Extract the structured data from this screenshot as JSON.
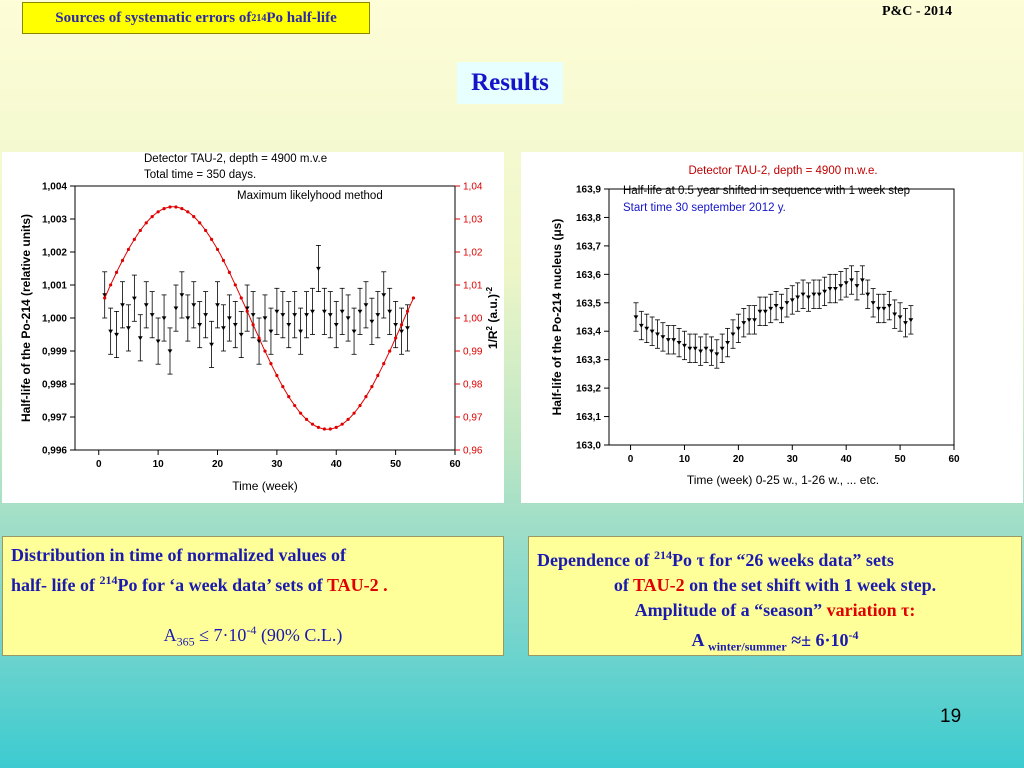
{
  "header": {
    "label_prefix": "Sources of systematic errors of ",
    "label_sup": "214",
    "label_suffix": "Po half-life",
    "conference": "P&C - 2014",
    "results_title": "Results"
  },
  "left_box": {
    "line1": "Distribution in time of normalized values of",
    "line2_prefix": "half- life of ",
    "line2_sup": "214",
    "line2_mid": "Po for ‘a week data’ sets of ",
    "line2_red": "TAU-2 .",
    "amp_A": "A",
    "amp_sub": "365",
    "amp_mid": " ≤ 7·10",
    "amp_sup": "-4",
    "amp_tail": " (90% C.L.)"
  },
  "right_box": {
    "line1_prefix": "Dependence of  ",
    "line1_sup": "214",
    "line1_mid": "Po τ for “26 weeks data” sets",
    "line2_prefix": "of ",
    "line2_red": "TAU-2",
    "line2_suffix": " on the set shift with 1 week step.",
    "line3_prefix": "Amplitude of a “season” ",
    "line3_red": "variation τ:",
    "line4_A": "A ",
    "line4_sub": "winter/summer",
    "line4_mid": " ≈± 6·10",
    "line4_sup": "-4"
  },
  "page_number": "19",
  "colors": {
    "blue": "#1515c8",
    "red": "#e00000",
    "highlight": "#ffff00"
  },
  "chart_data": [
    {
      "type": "scatter",
      "title_lines": [
        "Detector TAU-2, depth = 4900 m.v.e",
        "Total time = 350 days."
      ],
      "annotation": "Maximum likelyhood method",
      "xlabel": "Time (week)",
      "ylabel": "Half-life of the Po-214 (relative units)",
      "y2label": "1/R",
      "y2label_sup": "2",
      "y2label_tail": " (a.u.)",
      "y2label_sup2": "-2",
      "xlim": [
        -4,
        60
      ],
      "ylim": [
        0.996,
        1.004
      ],
      "y2lim": [
        0.96,
        1.04
      ],
      "xticks": [
        0,
        10,
        20,
        30,
        40,
        50,
        60
      ],
      "xtick_labels": [
        "0",
        "10",
        "20",
        "30",
        "40",
        "50",
        "60"
      ],
      "yticks": [
        0.996,
        0.997,
        0.998,
        0.999,
        1.0,
        1.001,
        1.002,
        1.003,
        1.004
      ],
      "ytick_labels": [
        "0,996",
        "0,997",
        "0,998",
        "0,999",
        "1,000",
        "1,001",
        "1,002",
        "1,003",
        "1,004"
      ],
      "y2ticks": [
        0.96,
        0.97,
        0.98,
        0.99,
        1.0,
        1.01,
        1.02,
        1.03,
        1.04
      ],
      "y2tick_labels": [
        "0,96",
        "0,97",
        "0,98",
        "0,99",
        "1,00",
        "1,01",
        "1,02",
        "1,03",
        "1,04"
      ],
      "grid": false,
      "series": [
        {
          "kind": "errorbar",
          "x": [
            1,
            2,
            3,
            4,
            5,
            6,
            7,
            8,
            9,
            10,
            11,
            12,
            13,
            14,
            15,
            16,
            17,
            18,
            19,
            20,
            21,
            22,
            23,
            24,
            25,
            26,
            27,
            28,
            29,
            30,
            31,
            32,
            33,
            34,
            35,
            36,
            37,
            38,
            39,
            40,
            41,
            42,
            43,
            44,
            45,
            46,
            47,
            48,
            49,
            50,
            51,
            52
          ],
          "y": [
            1.0007,
            0.9996,
            0.9995,
            1.0004,
            0.9997,
            1.0006,
            0.9994,
            1.0004,
            1.0001,
            0.9993,
            1.0,
            0.999,
            1.0003,
            1.0007,
            1.0,
            1.0004,
            0.9998,
            1.0001,
            0.9992,
            1.0004,
            0.9997,
            1.0,
            0.9998,
            0.9995,
            1.0003,
            1.0001,
            0.9993,
            1.0,
            0.9996,
            1.0002,
            1.0001,
            0.9998,
            1.0001,
            0.9996,
            1.0001,
            1.0002,
            1.0015,
            1.0002,
            1.0001,
            0.9998,
            1.0002,
            1.0,
            0.9996,
            1.0002,
            1.0004,
            0.9999,
            1.0001,
            1.0007,
            1.0002,
            0.9998,
            0.9996,
            0.9997
          ],
          "err": [
            0.0007,
            0.0007,
            0.0007,
            0.0007,
            0.0007,
            0.0007,
            0.0007,
            0.0007,
            0.0007,
            0.0007,
            0.0007,
            0.0007,
            0.0007,
            0.0007,
            0.0007,
            0.0007,
            0.0007,
            0.0007,
            0.0007,
            0.0007,
            0.0007,
            0.0007,
            0.0007,
            0.0007,
            0.0007,
            0.0007,
            0.0007,
            0.0007,
            0.0007,
            0.0007,
            0.0007,
            0.0007,
            0.0007,
            0.0007,
            0.0007,
            0.0007,
            0.0007,
            0.0007,
            0.0007,
            0.0007,
            0.0007,
            0.0007,
            0.0007,
            0.0007,
            0.0007,
            0.0007,
            0.0007,
            0.0007,
            0.0007,
            0.0007,
            0.0007,
            0.0007
          ],
          "color": "#000000"
        },
        {
          "kind": "sine_curve",
          "axis": "right",
          "center": 1.0,
          "amplitude": 0.0337,
          "peak_week": 12.5,
          "period_weeks": 52,
          "x_start": 1,
          "x_end": 53,
          "color": "#e00000"
        }
      ]
    },
    {
      "type": "scatter",
      "title": "Detector TAU-2,  depth = 4900 m.w.e.",
      "annotation_lines": [
        "Half-life at 0.5 year shifted in sequence with 1 week step",
        "Start time 30 september 2012 y."
      ],
      "xlabel": "Time  (week) 0-25 w., 1-26 w., ... etc.",
      "ylabel": "Half-life of the Po-214 nucleus (μs)",
      "xlim": [
        -4,
        60
      ],
      "ylim": [
        163.0,
        163.9
      ],
      "xticks": [
        0,
        10,
        20,
        30,
        40,
        50,
        60
      ],
      "xtick_labels": [
        "0",
        "10",
        "20",
        "30",
        "40",
        "50",
        "60"
      ],
      "yticks": [
        163.0,
        163.1,
        163.2,
        163.3,
        163.4,
        163.5,
        163.6,
        163.7,
        163.8,
        163.9
      ],
      "ytick_labels": [
        "163,0",
        "163,1",
        "163,2",
        "163,3",
        "163,4",
        "163,5",
        "163,6",
        "163,7",
        "163,8",
        "163,9"
      ],
      "grid": false,
      "series": [
        {
          "kind": "errorbar",
          "x": [
            1,
            2,
            3,
            4,
            5,
            6,
            7,
            8,
            9,
            10,
            11,
            12,
            13,
            14,
            15,
            16,
            17,
            18,
            19,
            20,
            21,
            22,
            23,
            24,
            25,
            26,
            27,
            28,
            29,
            30,
            31,
            32,
            33,
            34,
            35,
            36,
            37,
            38,
            39,
            40,
            41,
            42,
            43,
            44,
            45,
            46,
            47,
            48,
            49,
            50,
            51,
            52
          ],
          "y": [
            163.45,
            163.42,
            163.41,
            163.4,
            163.39,
            163.38,
            163.37,
            163.37,
            163.36,
            163.35,
            163.34,
            163.34,
            163.33,
            163.34,
            163.33,
            163.32,
            163.34,
            163.36,
            163.39,
            163.41,
            163.43,
            163.44,
            163.44,
            163.47,
            163.47,
            163.48,
            163.49,
            163.48,
            163.5,
            163.51,
            163.52,
            163.53,
            163.52,
            163.53,
            163.53,
            163.54,
            163.55,
            163.55,
            163.56,
            163.57,
            163.58,
            163.56,
            163.58,
            163.53,
            163.5,
            163.48,
            163.48,
            163.49,
            163.46,
            163.45,
            163.43,
            163.44
          ],
          "err": [
            0.05,
            0.05,
            0.05,
            0.05,
            0.05,
            0.05,
            0.05,
            0.05,
            0.05,
            0.05,
            0.05,
            0.05,
            0.05,
            0.05,
            0.05,
            0.05,
            0.05,
            0.05,
            0.05,
            0.05,
            0.05,
            0.05,
            0.05,
            0.05,
            0.05,
            0.05,
            0.05,
            0.05,
            0.05,
            0.05,
            0.05,
            0.05,
            0.05,
            0.05,
            0.05,
            0.05,
            0.05,
            0.05,
            0.05,
            0.05,
            0.05,
            0.05,
            0.05,
            0.05,
            0.05,
            0.05,
            0.05,
            0.05,
            0.05,
            0.05,
            0.05,
            0.05
          ],
          "color": "#000000"
        }
      ]
    }
  ]
}
